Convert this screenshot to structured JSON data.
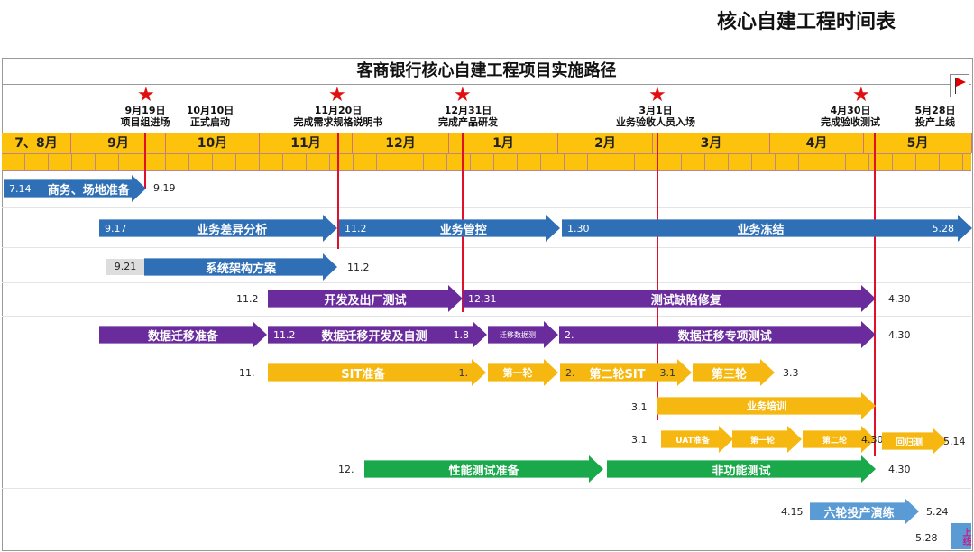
{
  "page_title": "核心自建工程时间表",
  "chart_title": "客商银行核心自建工程项目实施路径",
  "milestones": [
    {
      "date": "9月19日",
      "label": "项目组进场",
      "star": true
    },
    {
      "date": "10月10日",
      "label": "正式启动",
      "star": false
    },
    {
      "date": "11月20日",
      "label": "完成需求规格说明书",
      "star": true
    },
    {
      "date": "12月31日",
      "label": "完成产品研发",
      "star": true
    },
    {
      "date": "3月1日",
      "label": "业务验收人员入场",
      "star": true
    },
    {
      "date": "4月30日",
      "label": "完成验收测试",
      "star": true
    },
    {
      "date": "5月28日",
      "label": "投产上线",
      "star": false
    }
  ],
  "months": [
    "7、8月",
    "9月",
    "10月",
    "11月",
    "12月",
    "1月",
    "2月",
    "3月",
    "4月",
    "5月"
  ],
  "rows": {
    "r1": {
      "start": "7.14",
      "label": "商务、场地准备",
      "end": "9.19"
    },
    "r2": {
      "a_start": "9.17",
      "a": "业务差异分析",
      "b_start": "11.2",
      "b": "业务管控",
      "c_start": "1.30",
      "c": "业务冻结",
      "c_end": "5.28"
    },
    "r3": {
      "start": "9.21",
      "label": "系统架构方案",
      "end": "11.2"
    },
    "r4": {
      "start": "11.2",
      "a": "开发及出厂测试",
      "b_start": "12.31",
      "b": "测试缺陷修复",
      "end": "4.30"
    },
    "r5": {
      "a": "数据迁移准备",
      "b_start": "11.2",
      "b": "数据迁移开发及自测",
      "b_end": "1.8",
      "c": "迁移数据测",
      "d_start": "2.",
      "d": "数据迁移专项测试",
      "end": "4.30"
    },
    "r6": {
      "start": "11.",
      "a": "SIT准备",
      "a_end": "1.",
      "b": "第一轮",
      "c_start": "2.",
      "c": "第二轮SIT",
      "c_end": "3.1",
      "d": "第三轮",
      "end": "3.3"
    },
    "r7": {
      "start": "3.1",
      "label": "业务培训"
    },
    "r8": {
      "start": "3.1",
      "a": "UAT准备",
      "b": "第一轮",
      "c": "第二轮",
      "c_end": "4.30",
      "d": "回归测",
      "end": "5.14"
    },
    "r9": {
      "start": "12.",
      "a": "性能测试准备",
      "b": "非功能测试",
      "end": "4.30"
    },
    "r10": {
      "start": "4.15",
      "label": "六轮投产演练",
      "end": "5.24",
      "golive_date": "5.28",
      "golive": "上线"
    }
  },
  "colors": {
    "blue": "#2f6fb6",
    "purple": "#6a2c9c",
    "yellow": "#f6b810",
    "green": "#19a84a",
    "light_blue": "#5b9bd5",
    "milestone_red": "#e01010",
    "header": "#fcc20c"
  }
}
